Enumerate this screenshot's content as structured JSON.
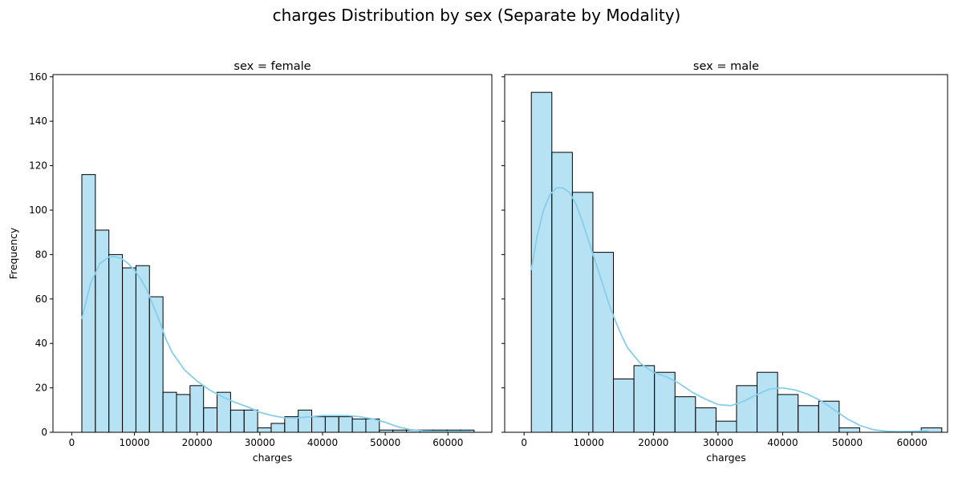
{
  "figure": {
    "suptitle": "charges Distribution by sex (Separate by Modality)"
  },
  "chart_data": [
    {
      "type": "bar",
      "title": "sex = female",
      "xlabel": "charges",
      "ylabel": "Frequency",
      "xlim": [
        -3000,
        67000
      ],
      "ylim": [
        0,
        161
      ],
      "xticks": [
        0,
        10000,
        20000,
        30000,
        40000,
        50000,
        60000
      ],
      "yticks": [
        0,
        20,
        40,
        60,
        80,
        100,
        120,
        140,
        160
      ],
      "bin_start": 1607,
      "bin_width": 2157,
      "counts": [
        116,
        91,
        80,
        74,
        75,
        61,
        18,
        17,
        21,
        11,
        18,
        10,
        10,
        2,
        4,
        7,
        10,
        7,
        7,
        7,
        6,
        6,
        1,
        1,
        1,
        1,
        1,
        1,
        1
      ],
      "kde": {
        "x": [
          1600,
          3000,
          4500,
          6000,
          7000,
          8000,
          9000,
          10000,
          11000,
          12000,
          13000,
          14000,
          15000,
          16000,
          18000,
          20000,
          22000,
          24000,
          26000,
          28000,
          30000,
          32000,
          34000,
          36000,
          38000,
          40000,
          42000,
          44000,
          46000,
          48000,
          50000,
          52000,
          54000,
          56000,
          58000,
          60000,
          62000,
          63700
        ],
        "y": [
          51,
          67,
          76,
          79,
          79,
          78,
          76,
          73,
          69,
          64,
          57,
          50,
          42,
          36,
          28,
          23,
          19,
          16,
          13.5,
          11.5,
          9,
          7.5,
          6.5,
          6.5,
          7,
          7.5,
          7.5,
          7.5,
          7,
          6,
          4.5,
          2.5,
          1.2,
          0.6,
          0.4,
          0.3,
          0.4,
          0.4
        ]
      },
      "color": "#87ceeb"
    },
    {
      "type": "bar",
      "title": "sex = male",
      "xlabel": "charges",
      "ylabel": "",
      "xlim": [
        -3000,
        65500
      ],
      "ylim": [
        0,
        161
      ],
      "xticks": [
        0,
        10000,
        20000,
        30000,
        40000,
        50000,
        60000
      ],
      "yticks": [
        0,
        20,
        40,
        60,
        80,
        100,
        120,
        140,
        160
      ],
      "bin_start": 1122,
      "bin_width": 3174,
      "counts": [
        153,
        126,
        108,
        81,
        24,
        30,
        27,
        16,
        11,
        5,
        21,
        27,
        17,
        12,
        14,
        2,
        0,
        0,
        0,
        2
      ],
      "kde": {
        "x": [
          1100,
          2000,
          3000,
          4000,
          5000,
          6000,
          7000,
          8000,
          9000,
          10000,
          11000,
          12000,
          13000,
          14000,
          15000,
          16000,
          18000,
          20000,
          22000,
          24000,
          26000,
          28000,
          30000,
          32000,
          34000,
          36000,
          38000,
          40000,
          42000,
          44000,
          46000,
          48000,
          50000,
          52000,
          54000,
          56000,
          58000,
          60000,
          62000,
          62600
        ],
        "y": [
          73,
          88,
          100,
          107,
          110,
          110,
          108,
          103,
          95,
          86,
          77,
          68,
          59,
          51,
          44,
          38,
          31,
          27,
          25,
          22,
          18,
          15,
          12.5,
          12,
          14,
          17,
          19.5,
          20,
          19,
          17,
          14,
          10,
          6,
          3,
          1.2,
          0.5,
          0.3,
          0.4,
          0.6,
          0.6
        ]
      },
      "color": "#87ceeb"
    }
  ]
}
